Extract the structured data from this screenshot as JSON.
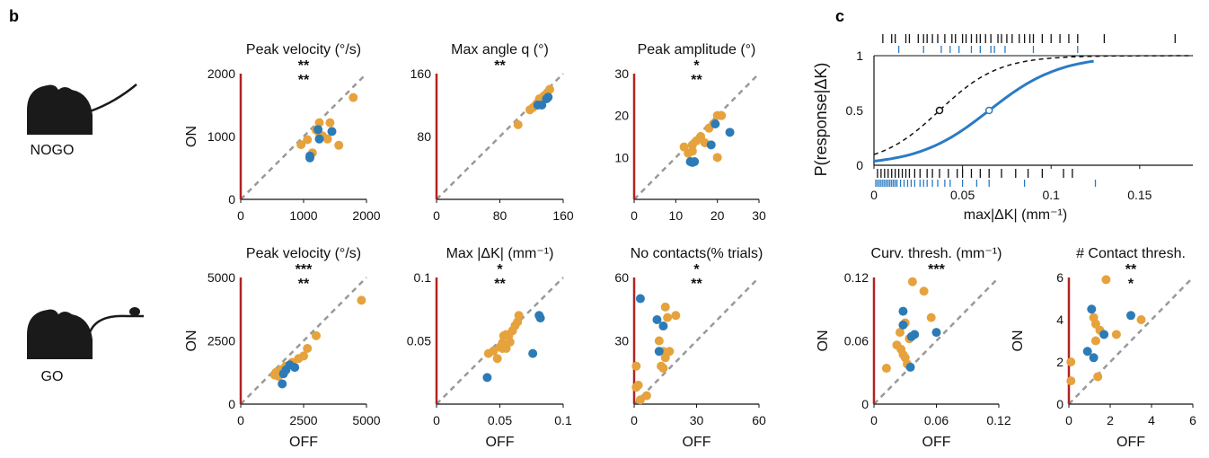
{
  "panel_labels": [
    "b",
    "c"
  ],
  "mouse_labels": {
    "nogo": "NOGO",
    "go": "GO"
  },
  "colors": {
    "orange": "#E6A23C",
    "blue": "#2C7BB6",
    "red_axis": "#B22222",
    "dash": "#999999",
    "curve_blue": "#2A7BC4"
  },
  "chart_data": [
    {
      "id": "nogo-velocity",
      "type": "scatter",
      "title": "Peak velocity (°/s)",
      "ylabel": "ON",
      "xlabel": "",
      "xlim": [
        0,
        2000
      ],
      "ylim": [
        0,
        2000
      ],
      "xticks": [
        "0",
        "1000",
        "2000"
      ],
      "yticks": [
        "0",
        "1000",
        "2000"
      ],
      "stars_orange": "**",
      "stars_blue": "**",
      "series": [
        {
          "color": "orange",
          "points": [
            [
              1790,
              1620
            ],
            [
              960,
              870
            ],
            [
              1060,
              950
            ],
            [
              1200,
              1100
            ],
            [
              1250,
              1220
            ],
            [
              1300,
              1010
            ],
            [
              1380,
              960
            ],
            [
              1420,
              1220
            ],
            [
              1560,
              860
            ],
            [
              1140,
              740
            ],
            [
              1260,
              1020
            ]
          ]
        },
        {
          "color": "blue",
          "points": [
            [
              1230,
              1110
            ],
            [
              1250,
              960
            ],
            [
              1450,
              1080
            ],
            [
              1100,
              690
            ],
            [
              1100,
              660
            ]
          ]
        }
      ]
    },
    {
      "id": "nogo-angle",
      "type": "scatter",
      "title": "Max angle q (°)",
      "ylabel": "",
      "xlabel": "",
      "xlim": [
        0,
        160
      ],
      "ylim": [
        0,
        160
      ],
      "xticks": [
        "0",
        "80",
        "160"
      ],
      "yticks": [
        "",
        "80",
        "160"
      ],
      "stars_orange": "**",
      "stars_blue": "",
      "series": [
        {
          "color": "orange",
          "points": [
            [
              103,
              95
            ],
            [
              122,
              117
            ],
            [
              126,
              121
            ],
            [
              128,
              123
            ],
            [
              132,
              126
            ],
            [
              136,
              132
            ],
            [
              140,
              136
            ],
            [
              143,
              140
            ],
            [
              130,
              128
            ],
            [
              135,
              130
            ],
            [
              118,
              114
            ]
          ]
        },
        {
          "color": "blue",
          "points": [
            [
              128,
              120
            ],
            [
              133,
              120
            ],
            [
              139,
              128
            ],
            [
              141,
              130
            ]
          ]
        }
      ]
    },
    {
      "id": "nogo-amplitude",
      "type": "scatter",
      "title": "Peak amplitude (°)",
      "ylabel": "",
      "xlabel": "",
      "xlim": [
        0,
        30
      ],
      "ylim": [
        0,
        30
      ],
      "xticks": [
        "0",
        "10",
        "20",
        "30"
      ],
      "yticks": [
        "",
        "10",
        "20",
        "30"
      ],
      "stars_orange": "*",
      "stars_blue": "**",
      "series": [
        {
          "color": "orange",
          "points": [
            [
              12,
              12.5
            ],
            [
              13,
              11
            ],
            [
              14,
              13
            ],
            [
              15,
              14
            ],
            [
              16,
              15
            ],
            [
              18,
              17
            ],
            [
              19,
              18
            ],
            [
              20,
              20
            ],
            [
              21,
              20
            ],
            [
              14,
              11.5
            ],
            [
              17,
              13.5
            ],
            [
              20,
              10
            ]
          ]
        },
        {
          "color": "blue",
          "points": [
            [
              23,
              16
            ],
            [
              19.5,
              18
            ],
            [
              18.5,
              13
            ],
            [
              14,
              8.8
            ],
            [
              14.5,
              9
            ],
            [
              13.5,
              9
            ]
          ]
        }
      ]
    },
    {
      "id": "go-velocity",
      "type": "scatter",
      "title": "Peak velocity (°/s)",
      "ylabel": "ON",
      "xlabel": "OFF",
      "xlim": [
        0,
        5000
      ],
      "ylim": [
        0,
        5000
      ],
      "xticks": [
        "0",
        "2500",
        "5000"
      ],
      "yticks": [
        "0",
        "2500",
        "5000"
      ],
      "stars_orange": "***",
      "stars_blue": "**",
      "series": [
        {
          "color": "orange",
          "points": [
            [
              4800,
              4100
            ],
            [
              3000,
              2700
            ],
            [
              2650,
              2200
            ],
            [
              2300,
              1800
            ],
            [
              2050,
              1650
            ],
            [
              1800,
              1500
            ],
            [
              1600,
              1350
            ],
            [
              1400,
              1250
            ],
            [
              1350,
              1150
            ],
            [
              1500,
              1100
            ],
            [
              1700,
              1400
            ],
            [
              2500,
              1900
            ]
          ]
        },
        {
          "color": "blue",
          "points": [
            [
              2150,
              1450
            ],
            [
              1950,
              1550
            ],
            [
              1800,
              1350
            ],
            [
              1700,
              1200
            ],
            [
              1650,
              800
            ]
          ]
        }
      ]
    },
    {
      "id": "go-curvature",
      "type": "scatter",
      "title": "Max |ΔK| (mm⁻¹)",
      "ylabel": "",
      "xlabel": "OFF",
      "xlim": [
        0,
        0.1
      ],
      "ylim": [
        0,
        0.1
      ],
      "xticks": [
        "0",
        "0.05",
        "0.1"
      ],
      "yticks": [
        "",
        "0.05",
        "0.1"
      ],
      "stars_orange": "*",
      "stars_blue": "**",
      "series": [
        {
          "color": "orange",
          "points": [
            [
              0.041,
              0.04
            ],
            [
              0.045,
              0.042
            ],
            [
              0.048,
              0.036
            ],
            [
              0.05,
              0.045
            ],
            [
              0.052,
              0.048
            ],
            [
              0.053,
              0.054
            ],
            [
              0.055,
              0.055
            ],
            [
              0.057,
              0.054
            ],
            [
              0.06,
              0.058
            ],
            [
              0.062,
              0.062
            ],
            [
              0.064,
              0.065
            ],
            [
              0.065,
              0.07
            ],
            [
              0.055,
              0.044
            ],
            [
              0.058,
              0.049
            ],
            [
              0.052,
              0.044
            ]
          ]
        },
        {
          "color": "blue",
          "points": [
            [
              0.081,
              0.07
            ],
            [
              0.082,
              0.068
            ],
            [
              0.076,
              0.04
            ],
            [
              0.04,
              0.021
            ]
          ]
        }
      ]
    },
    {
      "id": "go-nocontacts",
      "type": "scatter",
      "title": "No contacts(% trials)",
      "ylabel": "",
      "xlabel": "OFF",
      "xlim": [
        0,
        60
      ],
      "ylim": [
        0,
        60
      ],
      "xticks": [
        "0",
        "30",
        "60"
      ],
      "yticks": [
        "",
        "30",
        "60"
      ],
      "stars_orange": "*",
      "stars_blue": "**",
      "series": [
        {
          "color": "orange",
          "points": [
            [
              15,
              46
            ],
            [
              16,
              41
            ],
            [
              20,
              42
            ],
            [
              12,
              30
            ],
            [
              14,
              25
            ],
            [
              17,
              25
            ],
            [
              15,
              22
            ],
            [
              13,
              18
            ],
            [
              1,
              18
            ],
            [
              1,
              8
            ],
            [
              2,
              9
            ],
            [
              6,
              4
            ],
            [
              3,
              2
            ],
            [
              14,
              17
            ]
          ]
        },
        {
          "color": "blue",
          "points": [
            [
              3,
              50
            ],
            [
              11,
              40
            ],
            [
              14,
              37
            ],
            [
              12,
              25
            ]
          ]
        }
      ]
    },
    {
      "id": "psychometric",
      "type": "line",
      "title": "",
      "ylabel": "P(response|ΔK)",
      "xlabel": "max|ΔK| (mm⁻¹)",
      "xlim": [
        0,
        0.18
      ],
      "ylim": [
        0,
        1
      ],
      "xticks": [
        "0",
        "0.05",
        "0.1",
        "0.15"
      ],
      "yticks": [
        "0",
        "0.5",
        "1"
      ],
      "series": [
        {
          "style": "dashed",
          "color": "black",
          "midpoint": 0.037,
          "slope": 60,
          "x_end": 0.18
        },
        {
          "style": "solid",
          "color": "blue",
          "midpoint": 0.065,
          "slope": 50,
          "x_end": 0.125
        }
      ],
      "raster_top_black": [
        0.005,
        0.01,
        0.012,
        0.018,
        0.02,
        0.025,
        0.028,
        0.03,
        0.033,
        0.036,
        0.04,
        0.044,
        0.046,
        0.05,
        0.052,
        0.055,
        0.058,
        0.06,
        0.063,
        0.066,
        0.07,
        0.072,
        0.075,
        0.078,
        0.082,
        0.085,
        0.088,
        0.09,
        0.095,
        0.1,
        0.105,
        0.11,
        0.115,
        0.13,
        0.17
      ],
      "raster_top_blue": [
        0.014,
        0.028,
        0.038,
        0.043,
        0.048,
        0.055,
        0.06,
        0.066,
        0.068,
        0.074,
        0.09,
        0.115
      ],
      "raster_bottom_black": [
        0.002,
        0.004,
        0.006,
        0.008,
        0.01,
        0.012,
        0.014,
        0.016,
        0.018,
        0.02,
        0.023,
        0.026,
        0.03,
        0.033,
        0.037,
        0.042,
        0.047,
        0.05,
        0.055,
        0.06,
        0.065,
        0.072,
        0.08,
        0.087,
        0.095,
        0.107,
        0.112
      ],
      "raster_bottom_blue": [
        0.001,
        0.002,
        0.003,
        0.004,
        0.005,
        0.006,
        0.007,
        0.008,
        0.009,
        0.01,
        0.011,
        0.012,
        0.013,
        0.015,
        0.017,
        0.019,
        0.021,
        0.023,
        0.026,
        0.028,
        0.03,
        0.033,
        0.036,
        0.04,
        0.043,
        0.05,
        0.058,
        0.065,
        0.085,
        0.125
      ]
    },
    {
      "id": "curv-thresh",
      "type": "scatter",
      "title": "Curv. thresh. (mm⁻¹)",
      "ylabel": "ON",
      "xlabel": "OFF",
      "xlim": [
        0,
        0.12
      ],
      "ylim": [
        0,
        0.12
      ],
      "xticks": [
        "0",
        "0.06",
        "0.12"
      ],
      "yticks": [
        "0",
        "0.06",
        "0.12"
      ],
      "stars_orange": "***",
      "stars_blue": "",
      "series": [
        {
          "color": "orange",
          "points": [
            [
              0.037,
              0.116
            ],
            [
              0.048,
              0.107
            ],
            [
              0.055,
              0.082
            ],
            [
              0.03,
              0.077
            ],
            [
              0.025,
              0.068
            ],
            [
              0.034,
              0.062
            ],
            [
              0.022,
              0.056
            ],
            [
              0.026,
              0.052
            ],
            [
              0.028,
              0.047
            ],
            [
              0.03,
              0.044
            ],
            [
              0.032,
              0.038
            ],
            [
              0.012,
              0.034
            ]
          ]
        },
        {
          "color": "blue",
          "points": [
            [
              0.028,
              0.088
            ],
            [
              0.028,
              0.075
            ],
            [
              0.039,
              0.066
            ],
            [
              0.036,
              0.064
            ],
            [
              0.06,
              0.068
            ],
            [
              0.035,
              0.035
            ]
          ]
        }
      ]
    },
    {
      "id": "contact-thresh",
      "type": "scatter",
      "title": "# Contact thresh.",
      "ylabel": "ON",
      "xlabel": "OFF",
      "xlim": [
        0,
        6
      ],
      "ylim": [
        0,
        6
      ],
      "xticks": [
        "0",
        "2",
        "4",
        "6"
      ],
      "yticks": [
        "0",
        "2",
        "4",
        "6"
      ],
      "stars_orange": "**",
      "stars_blue": "*",
      "series": [
        {
          "color": "orange",
          "points": [
            [
              1.8,
              5.9
            ],
            [
              1.2,
              4.1
            ],
            [
              1.3,
              3.8
            ],
            [
              1.5,
              3.5
            ],
            [
              2.3,
              3.3
            ],
            [
              1.3,
              3.0
            ],
            [
              3.5,
              4.0
            ],
            [
              1.4,
              1.3
            ],
            [
              0.1,
              2.0
            ],
            [
              0.1,
              1.1
            ]
          ]
        },
        {
          "color": "blue",
          "points": [
            [
              1.1,
              4.5
            ],
            [
              3.0,
              4.2
            ],
            [
              1.7,
              3.3
            ],
            [
              0.9,
              2.5
            ],
            [
              1.2,
              2.2
            ]
          ]
        }
      ]
    }
  ]
}
